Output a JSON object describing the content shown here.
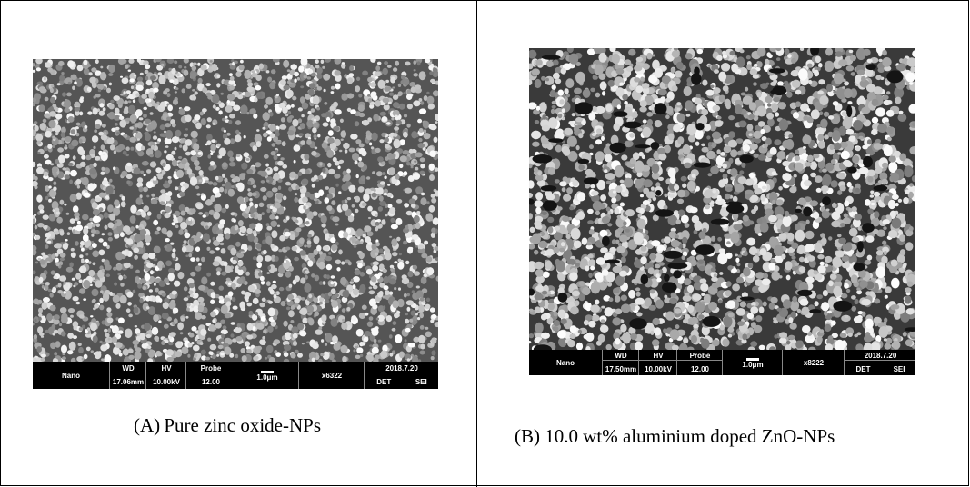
{
  "panel_a": {
    "caption": "(A) Pure zinc oxide-NPs",
    "image": {
      "brand": "Nano",
      "wd_label": "WD",
      "wd_value": "17.06mm",
      "hv_label": "HV",
      "hv_value": "10.00kV",
      "probe_label": "Probe",
      "probe_value": "12.00",
      "scale_value": "1.0μm",
      "magnification": "x6322",
      "date": "2018.7.20",
      "det_label": "DET",
      "det_value": "SEI"
    }
  },
  "panel_b": {
    "caption": "(B) 10.0 wt% aluminium doped ZnO-NPs",
    "image": {
      "brand": "Nano",
      "wd_label": "WD",
      "wd_value": "17.50mm",
      "hv_label": "HV",
      "hv_value": "10.00kV",
      "probe_label": "Probe",
      "probe_value": "12.00",
      "scale_value": "1.0μm",
      "magnification": "x8222",
      "date": "2018.7.20",
      "det_label": "DET",
      "det_value": "SEI"
    }
  }
}
